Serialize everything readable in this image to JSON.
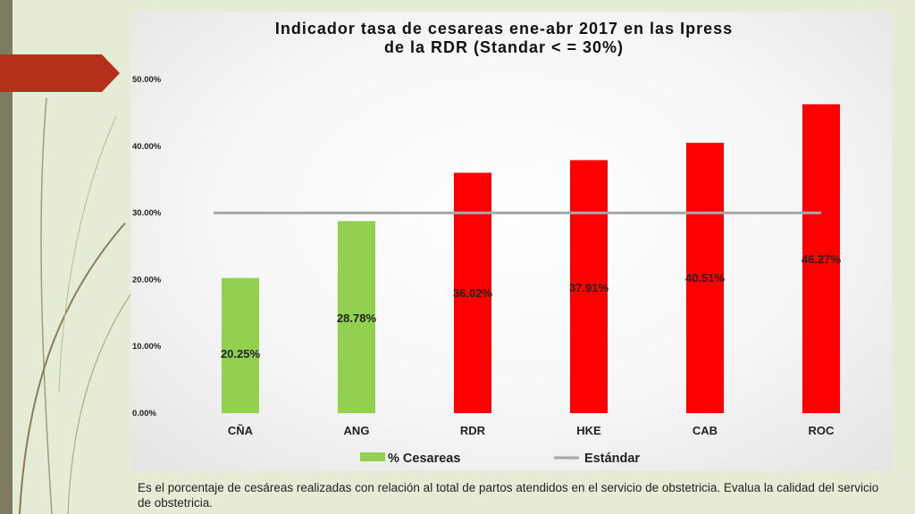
{
  "chart_data": {
    "type": "bar",
    "title_line1": "Indicador tasa de cesareas ene-abr 2017 en las Ipress",
    "title_line2": "de la RDR (Standar < = 30%)",
    "categories": [
      "CÑA",
      "ANG",
      "RDR",
      "HKE",
      "CAB",
      "ROC"
    ],
    "series": [
      {
        "name": "% Cesareas",
        "values": [
          20.25,
          28.78,
          36.02,
          37.91,
          40.51,
          46.27
        ],
        "value_labels": [
          "20.25%",
          "28.78%",
          "36.02%",
          "37.91%",
          "40.51%",
          "46.27%"
        ],
        "colors": [
          "#92d050",
          "#92d050",
          "#ff0000",
          "#ff0000",
          "#ff0000",
          "#ff0000"
        ]
      },
      {
        "name": "Estándar",
        "type": "line",
        "value": 30,
        "color": "#a6a6a6"
      }
    ],
    "ylim": [
      0,
      50
    ],
    "yticks": [
      0,
      10,
      20,
      30,
      40,
      50
    ],
    "ytick_labels": [
      "0.00%",
      "10.00%",
      "20.00%",
      "30.00%",
      "40.00%",
      "50.00%"
    ],
    "legend_position": "bottom",
    "grid": false
  },
  "caption": "Es el porcentaje de cesáreas realizadas con relación al total de partos atendidos en el servicio de obstetricia. Evalua la calidad del servicio de obstetricia.",
  "colors": {
    "ok": "#92d050",
    "over": "#ff0000",
    "standard_line": "#a6a6a6",
    "accent_tab": "#b5301a",
    "left_band": "#7f7b5f"
  }
}
